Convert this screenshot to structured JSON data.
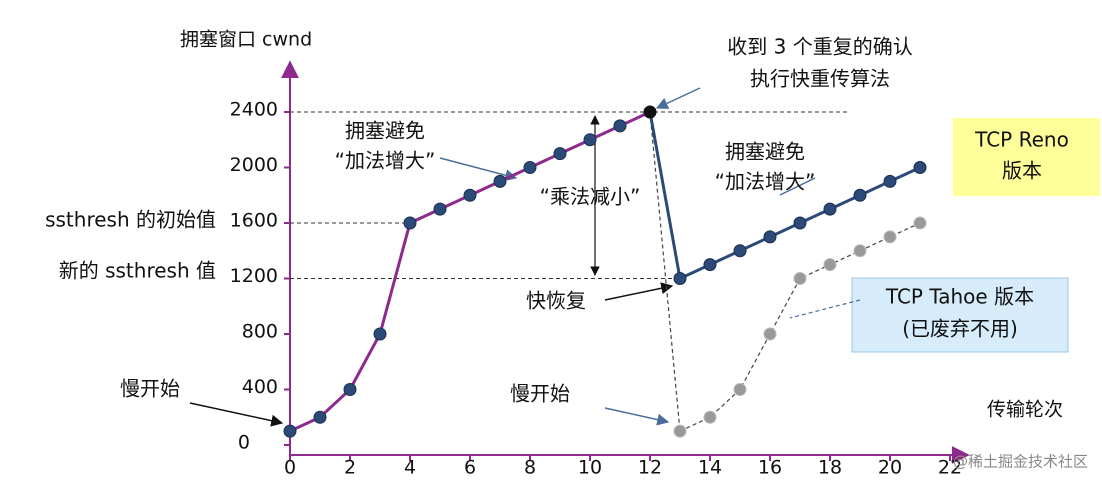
{
  "chart_data": {
    "type": "line",
    "y_label": "拥塞窗口 cwnd",
    "x_label": "传输轮次",
    "xlim": [
      0,
      22
    ],
    "xticks": [
      0,
      2,
      4,
      6,
      8,
      10,
      12,
      14,
      16,
      18,
      20,
      22
    ],
    "ylim": [
      -70,
      2800
    ],
    "yticks": [
      0,
      400,
      800,
      1200,
      1600,
      2000,
      2400
    ],
    "series": [
      {
        "color": "#8e2a8e",
        "marker_color": "#2b4a78",
        "dashed": false,
        "x": [
          0,
          1,
          2,
          3,
          4,
          5,
          6,
          7,
          8,
          9,
          10,
          11,
          12
        ],
        "values": [
          100,
          200,
          400,
          800,
          1600,
          1700,
          1800,
          1900,
          2000,
          2100,
          2200,
          2300,
          2400
        ]
      },
      {
        "color": "#2b4a78",
        "marker_color": "#2b4a78",
        "dashed": false,
        "x": [
          13,
          14,
          15,
          16,
          17,
          18,
          19,
          20,
          21
        ],
        "values": [
          1200,
          1300,
          1400,
          1500,
          1600,
          1700,
          1800,
          1900,
          2000
        ]
      },
      {
        "color": "#444444",
        "marker_color": "#999999",
        "dashed": true,
        "x": [
          13,
          14,
          15,
          16,
          17,
          18,
          19,
          20,
          21
        ],
        "values": [
          100,
          200,
          400,
          800,
          1200,
          1300,
          1400,
          1500,
          1600
        ]
      }
    ],
    "annotations": [
      "收到 3 个重复的确认",
      "执行快重传算法",
      "拥塞避免",
      "“加法增大”",
      "“乘法减小”",
      "拥塞避免",
      "“加法增大”",
      "TCP Reno",
      "版本",
      "TCP Tahoe 版本",
      "(已废弃不用)",
      "慢开始",
      "慢开始",
      "快恢复",
      "ssthresh 的初始值",
      "新的 ssthresh 值",
      "@稀土掘金技术社区"
    ]
  }
}
